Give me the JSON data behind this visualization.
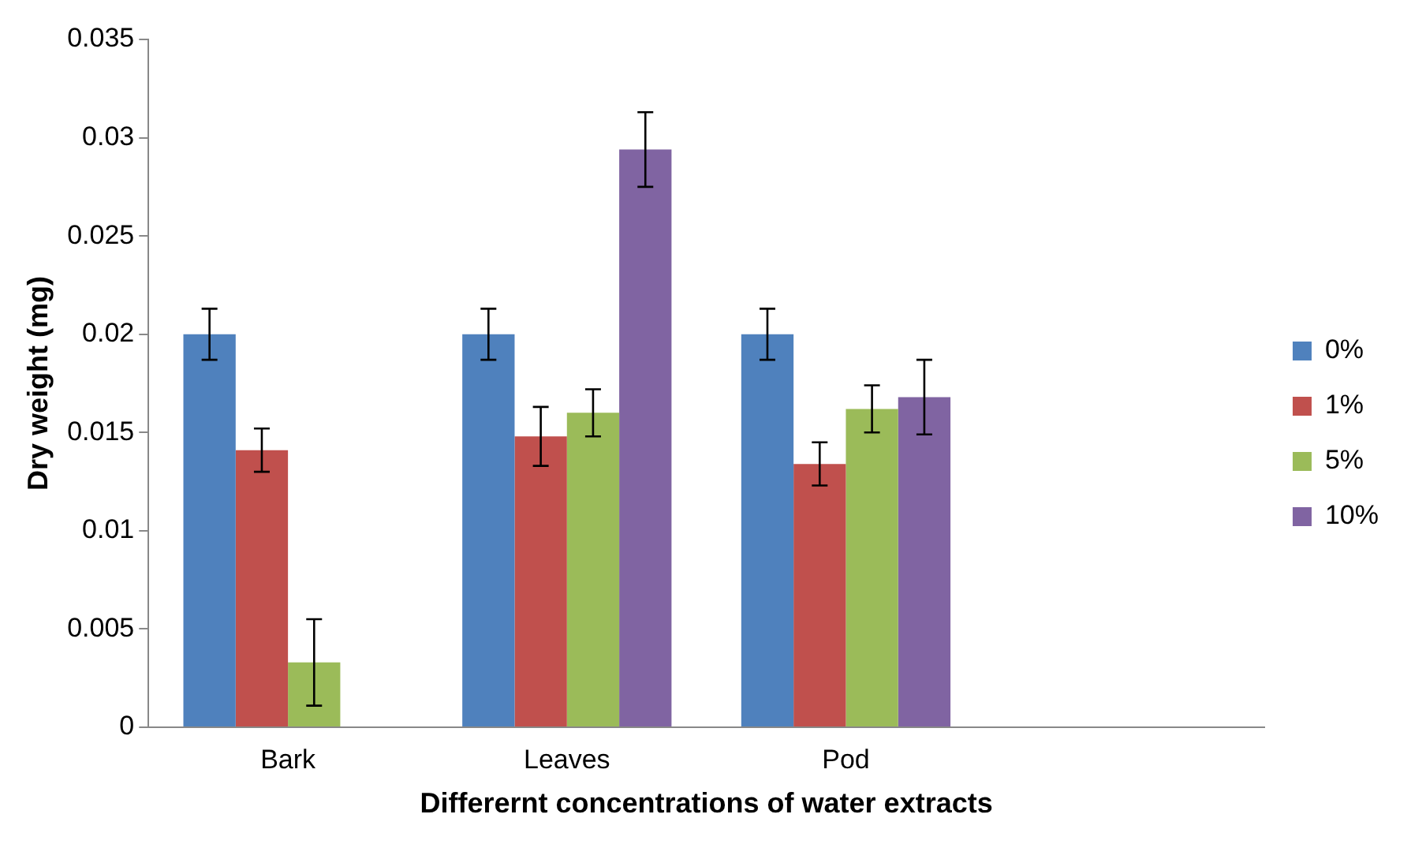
{
  "chart_data": {
    "type": "bar",
    "xlabel": "Differernt concentrations of water extracts",
    "ylabel": "Dry weight (mg)",
    "categories": [
      "Bark",
      "Leaves",
      "Pod",
      null
    ],
    "series": [
      {
        "name": "0%",
        "color": "#4f81bd",
        "values": [
          0.02,
          0.02,
          0.02,
          null
        ],
        "errors": [
          0.0013,
          0.0013,
          0.0013,
          null
        ]
      },
      {
        "name": "1%",
        "color": "#c0504d",
        "values": [
          0.0141,
          0.0148,
          0.0134,
          null
        ],
        "errors": [
          0.0011,
          0.0015,
          0.0011,
          null
        ]
      },
      {
        "name": "5%",
        "color": "#9bbb59",
        "values": [
          0.0033,
          0.016,
          0.0162,
          null
        ],
        "errors": [
          0.0022,
          0.0012,
          0.0012,
          null
        ]
      },
      {
        "name": "10%",
        "color": "#8064a2",
        "values": [
          null,
          0.0294,
          0.0168,
          null
        ],
        "errors": [
          null,
          0.0019,
          0.0019,
          null
        ]
      }
    ],
    "ylim": [
      0,
      0.035
    ],
    "yticks": [
      0,
      0.005,
      0.01,
      0.015,
      0.02,
      0.025,
      0.03,
      0.035
    ],
    "grid": false,
    "legend": "right"
  }
}
